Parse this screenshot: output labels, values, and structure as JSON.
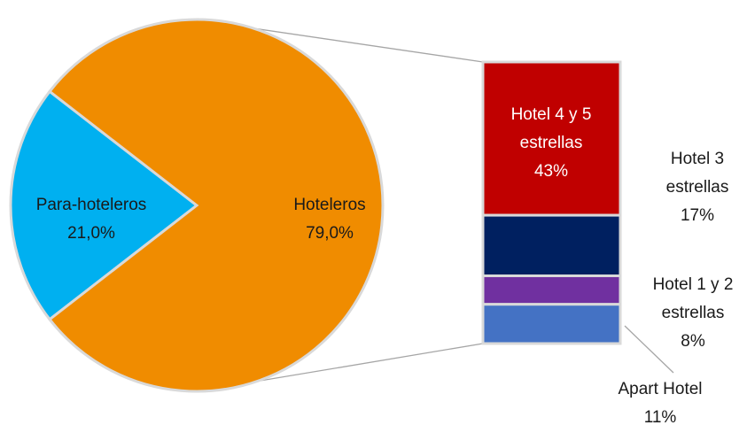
{
  "chart_data": [
    {
      "type": "pie",
      "categories": [
        "Para-hoteleros",
        "Hoteleros"
      ],
      "values": [
        21.0,
        79.0
      ],
      "value_labels": [
        "21,0%",
        "79,0%"
      ],
      "colors": [
        "#00b0f0",
        "#f08c00"
      ]
    },
    {
      "type": "stacked-bar",
      "categories": [
        "Hotel 4 y 5 estrellas",
        "Hotel 3 estrellas",
        "Hotel 1 y 2 estrellas",
        "Apart Hotel"
      ],
      "values": [
        43,
        17,
        8,
        11
      ],
      "value_labels": [
        "43%",
        "17%",
        "8%",
        "11%"
      ],
      "colors": [
        "#c00000",
        "#002060",
        "#7030a0",
        "#4472c4"
      ]
    }
  ]
}
